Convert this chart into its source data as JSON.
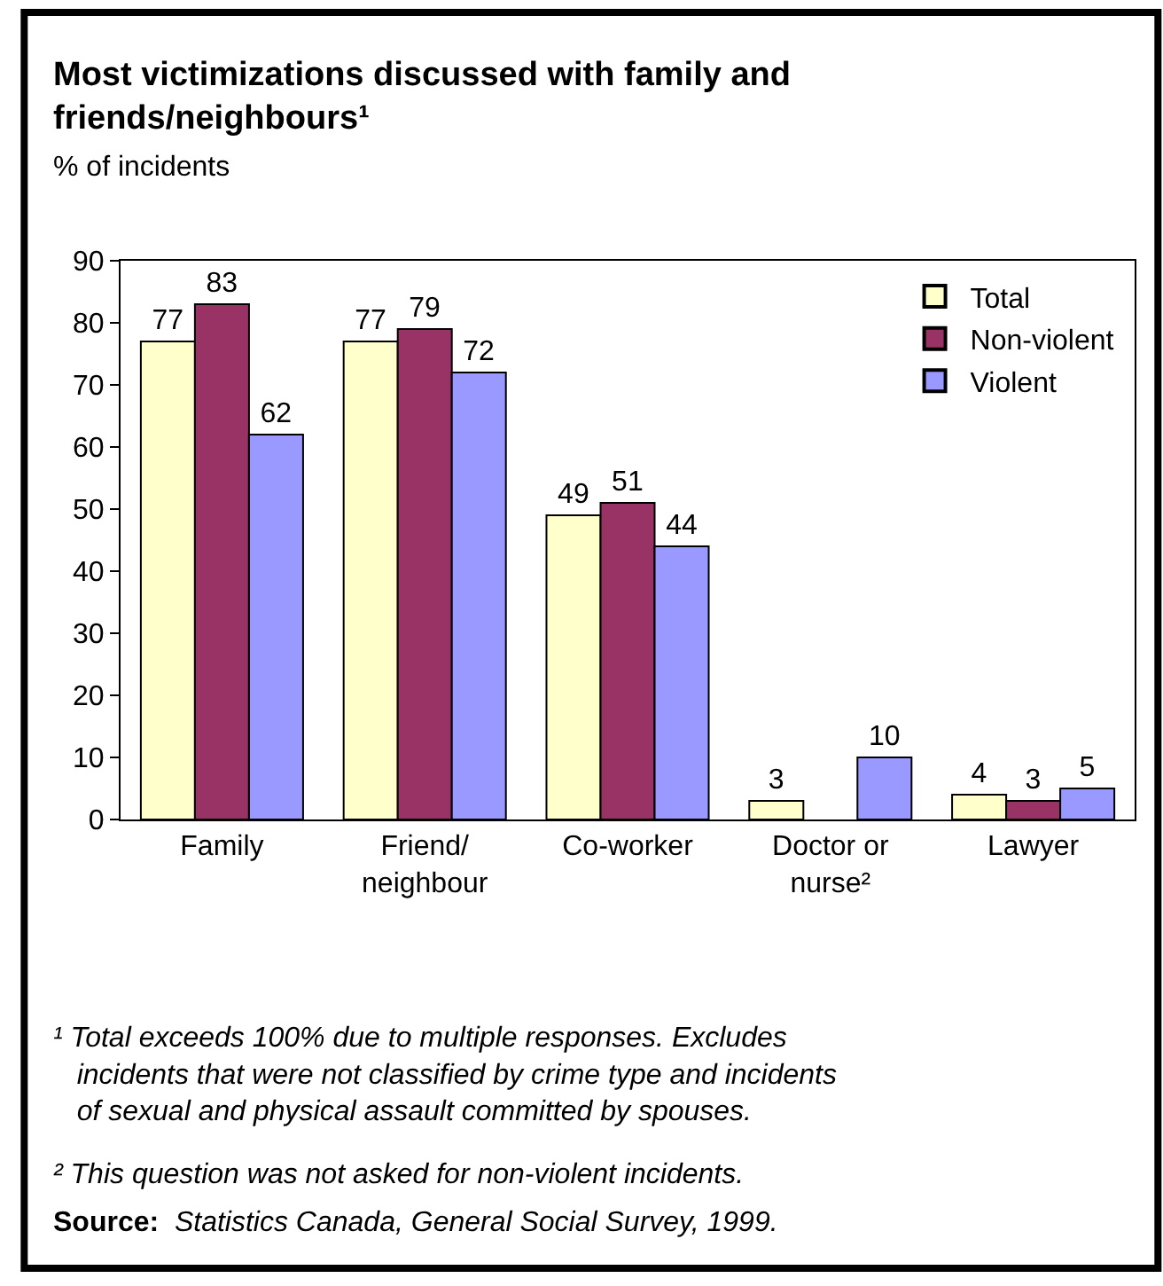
{
  "chart_data": {
    "type": "bar",
    "title": "Most victimizations discussed with family and friends/neighbours¹",
    "ylabel": "% of incidents",
    "categories": [
      "Family",
      "Friend/ neighbour",
      "Co-worker",
      "Doctor or nurse²",
      "Lawyer"
    ],
    "series": [
      {
        "name": "Total",
        "color": "#ffffcc",
        "values": [
          77,
          77,
          49,
          3,
          4
        ]
      },
      {
        "name": "Non-violent",
        "color": "#993366",
        "values": [
          83,
          79,
          51,
          null,
          3
        ]
      },
      {
        "name": "Violent",
        "color": "#9999ff",
        "values": [
          62,
          72,
          44,
          10,
          5
        ]
      }
    ],
    "ylim": [
      0,
      90
    ],
    "yticks": [
      0,
      10,
      20,
      30,
      40,
      50,
      60,
      70,
      80,
      90
    ],
    "grid": false,
    "legend": "top right",
    "data_labels": true,
    "annotations": [
      "¹ Total exceeds 100% due to multiple responses. Excludes incidents that were not classified by crime type and incidents of sexual and physical assault committed by spouses.",
      "² This question was not asked for non-violent incidents.",
      "Source: Statistics Canada, General Social Survey, 1999."
    ]
  }
}
